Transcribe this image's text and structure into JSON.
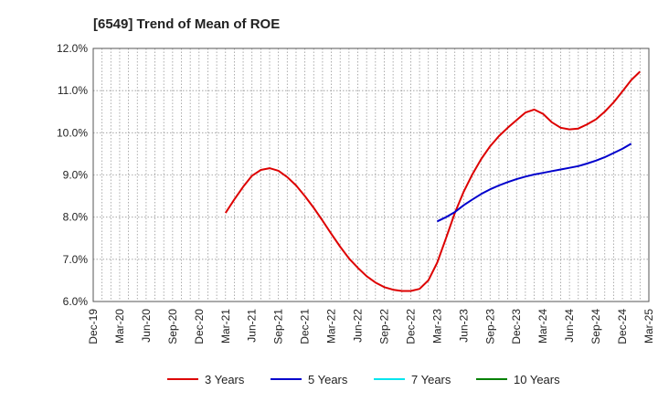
{
  "title": "[6549]  Trend of Mean of ROE",
  "chart_data": {
    "type": "line",
    "title": "[6549]  Trend of Mean of ROE",
    "xlabel": "",
    "ylabel": "",
    "x_ticks": [
      "Dec-19",
      "Mar-20",
      "Jun-20",
      "Sep-20",
      "Dec-20",
      "Mar-21",
      "Jun-21",
      "Sep-21",
      "Dec-21",
      "Mar-22",
      "Jun-22",
      "Sep-22",
      "Dec-22",
      "Mar-23",
      "Jun-23",
      "Sep-23",
      "Dec-23",
      "Mar-24",
      "Jun-24",
      "Sep-24",
      "Dec-24",
      "Mar-25"
    ],
    "y_ticks": [
      "6.0%",
      "7.0%",
      "8.0%",
      "9.0%",
      "10.0%",
      "11.0%",
      "12.0%"
    ],
    "ylim": [
      6.0,
      12.0
    ],
    "grid": true,
    "legend_position": "bottom",
    "series": [
      {
        "name": "3 Years",
        "color": "#dd0000",
        "points": [
          [
            "Mar-21",
            8.1
          ],
          [
            "Apr-21",
            8.42
          ],
          [
            "May-21",
            8.72
          ],
          [
            "Jun-21",
            8.98
          ],
          [
            "Jul-21",
            9.12
          ],
          [
            "Aug-21",
            9.16
          ],
          [
            "Sep-21",
            9.1
          ],
          [
            "Oct-21",
            8.95
          ],
          [
            "Nov-21",
            8.75
          ],
          [
            "Dec-21",
            8.5
          ],
          [
            "Jan-22",
            8.22
          ],
          [
            "Feb-22",
            7.92
          ],
          [
            "Mar-22",
            7.6
          ],
          [
            "Apr-22",
            7.3
          ],
          [
            "May-22",
            7.02
          ],
          [
            "Jun-22",
            6.8
          ],
          [
            "Jul-22",
            6.6
          ],
          [
            "Aug-22",
            6.45
          ],
          [
            "Sep-22",
            6.34
          ],
          [
            "Oct-22",
            6.28
          ],
          [
            "Nov-22",
            6.25
          ],
          [
            "Dec-22",
            6.25
          ],
          [
            "Jan-23",
            6.3
          ],
          [
            "Feb-23",
            6.5
          ],
          [
            "Mar-23",
            6.92
          ],
          [
            "Apr-23",
            7.5
          ],
          [
            "May-23",
            8.1
          ],
          [
            "Jun-23",
            8.6
          ],
          [
            "Jul-23",
            9.02
          ],
          [
            "Aug-23",
            9.38
          ],
          [
            "Sep-23",
            9.68
          ],
          [
            "Oct-23",
            9.92
          ],
          [
            "Nov-23",
            10.12
          ],
          [
            "Dec-23",
            10.3
          ],
          [
            "Jan-24",
            10.48
          ],
          [
            "Feb-24",
            10.55
          ],
          [
            "Mar-24",
            10.45
          ],
          [
            "Apr-24",
            10.25
          ],
          [
            "May-24",
            10.12
          ],
          [
            "Jun-24",
            10.08
          ],
          [
            "Jul-24",
            10.1
          ],
          [
            "Aug-24",
            10.2
          ],
          [
            "Sep-24",
            10.32
          ],
          [
            "Oct-24",
            10.5
          ],
          [
            "Nov-24",
            10.72
          ],
          [
            "Dec-24",
            10.98
          ],
          [
            "Jan-25",
            11.25
          ],
          [
            "Feb-25",
            11.45
          ]
        ]
      },
      {
        "name": "5 Years",
        "color": "#0000cc",
        "points": [
          [
            "Mar-23",
            7.9
          ],
          [
            "Apr-23",
            8.0
          ],
          [
            "May-23",
            8.12
          ],
          [
            "Jun-23",
            8.28
          ],
          [
            "Jul-23",
            8.42
          ],
          [
            "Aug-23",
            8.55
          ],
          [
            "Sep-23",
            8.66
          ],
          [
            "Oct-23",
            8.75
          ],
          [
            "Nov-23",
            8.83
          ],
          [
            "Dec-23",
            8.9
          ],
          [
            "Jan-24",
            8.96
          ],
          [
            "Feb-24",
            9.01
          ],
          [
            "Mar-24",
            9.05
          ],
          [
            "Apr-24",
            9.09
          ],
          [
            "May-24",
            9.13
          ],
          [
            "Jun-24",
            9.17
          ],
          [
            "Jul-24",
            9.21
          ],
          [
            "Aug-24",
            9.27
          ],
          [
            "Sep-24",
            9.34
          ],
          [
            "Oct-24",
            9.42
          ],
          [
            "Nov-24",
            9.52
          ],
          [
            "Dec-24",
            9.62
          ],
          [
            "Jan-25",
            9.74
          ]
        ]
      },
      {
        "name": "7 Years",
        "color": "#00e5ee",
        "points": []
      },
      {
        "name": "10 Years",
        "color": "#008000",
        "points": []
      }
    ]
  }
}
